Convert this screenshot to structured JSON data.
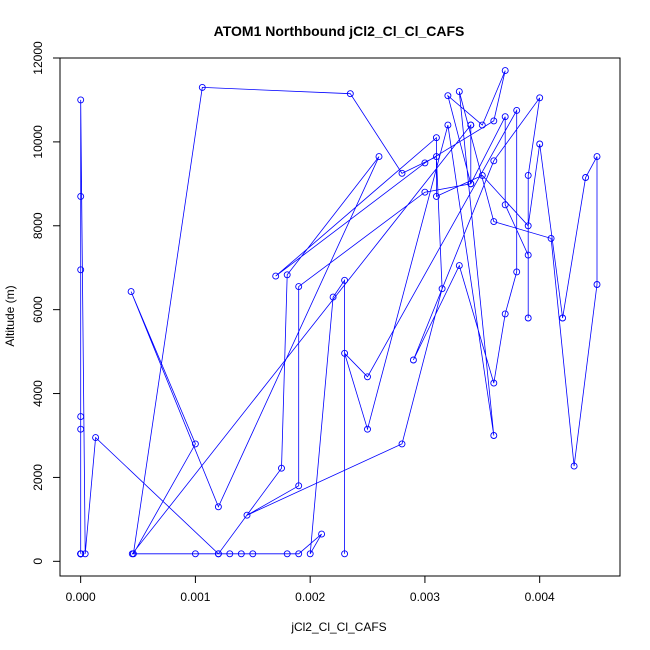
{
  "chart_data": {
    "type": "line",
    "title": "ATOM1 Northbound jCl2_Cl_Cl_CAFS",
    "xlabel": "jCl2_Cl_Cl_CAFS",
    "ylabel": "Altitude (m)",
    "xlim": [
      -0.00018,
      0.0047
    ],
    "ylim": [
      -350,
      12000
    ],
    "xticks": [
      0.0,
      0.001,
      0.002,
      0.003,
      0.004
    ],
    "xtick_labels": [
      "0.000",
      "0.001",
      "0.002",
      "0.003",
      "0.004"
    ],
    "yticks": [
      0,
      2000,
      4000,
      6000,
      8000,
      10000,
      12000
    ],
    "ytick_labels": [
      "0",
      "2000",
      "4000",
      "6000",
      "8000",
      "10000",
      "12000"
    ],
    "grid": false,
    "series_color": "#0000ff",
    "markers": "open-circle",
    "series": [
      {
        "x": [
          0.0,
          0.0,
          0.0,
          0.0,
          0.0,
          0.0,
          0.0,
          0.0,
          0.0,
          0.0,
          4e-05,
          0.00013,
          0.0012,
          0.00175,
          0.0018,
          0.0026,
          0.0012,
          0.00044,
          0.001,
          0.00046,
          0.00106,
          0.00235,
          0.0028,
          0.0031,
          0.00315,
          0.0028,
          0.00145,
          0.0019,
          0.0019,
          0.003,
          0.0034,
          0.0032,
          0.0035,
          0.0037,
          0.0036,
          0.003,
          0.0017,
          0.0031,
          0.0031,
          0.0035,
          0.0039,
          0.004,
          0.0042,
          0.0044,
          0.0045,
          0.0045,
          0.0043,
          0.0041,
          0.0036,
          0.0033,
          0.0036,
          0.0032,
          0.0025,
          0.0023,
          0.0025,
          0.0038,
          0.0038,
          0.0037,
          0.0036,
          0.0033,
          0.0029,
          0.0036,
          0.004,
          0.0039,
          0.0039,
          0.0039,
          0.0037,
          0.0037,
          0.0034,
          0.0034,
          0.0034,
          0.00045,
          0.001,
          0.0012,
          0.0013,
          0.0014,
          0.0015,
          0.0018,
          0.0019,
          0.0021,
          0.002,
          0.0022,
          0.0023,
          0.0023
        ],
        "y": [
          180,
          3450,
          180,
          8700,
          180,
          6950,
          180,
          3150,
          180,
          11000,
          180,
          2950,
          180,
          2220,
          6830,
          9650,
          1300,
          6430,
          2800,
          180,
          11300,
          11150,
          9250,
          9650,
          6500,
          2800,
          1100,
          1800,
          6550,
          8800,
          9000,
          11100,
          10400,
          11700,
          10500,
          9500,
          6800,
          10100,
          8700,
          9200,
          8000,
          9950,
          5800,
          9150,
          9650,
          6600,
          2270,
          7700,
          8100,
          11200,
          3000,
          10400,
          3150,
          4960,
          4400,
          10750,
          6900,
          5900,
          4250,
          7050,
          4800,
          9550,
          11050,
          9200,
          5800,
          7300,
          8500,
          10600,
          9000,
          10400,
          10400,
          180,
          180,
          180,
          180,
          180,
          180,
          180,
          180,
          650,
          180,
          6300,
          6700,
          180
        ]
      }
    ]
  }
}
